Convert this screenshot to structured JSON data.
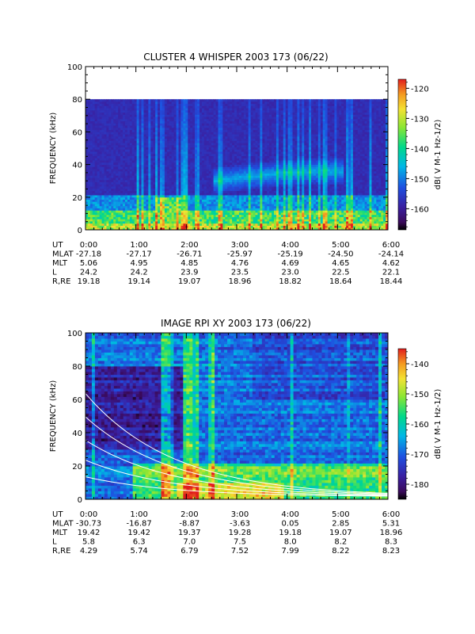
{
  "chart_data": [
    {
      "type": "heatmap",
      "title": "CLUSTER 4 WHISPER 2003 173 (06/22)",
      "ylabel": "FREQUENCY (kHz)",
      "xlim": [
        "0:00",
        "6:00"
      ],
      "ylim": [
        0,
        100
      ],
      "y_ticks": [
        "0",
        "20",
        "40",
        "60",
        "80",
        "100"
      ],
      "data_max_freq_khz": 80,
      "colorbar": {
        "label": "dB( V M-1 Hz-1/2)",
        "range": [
          -167,
          -117
        ],
        "ticks": [
          "-120",
          "-130",
          "-140",
          "-150",
          "-160"
        ],
        "tick_values": [
          -120,
          -130,
          -140,
          -150,
          -160
        ]
      },
      "ephemeris": {
        "labels": [
          "UT",
          "MLAT",
          "MLT",
          "L",
          "R,RE"
        ],
        "columns": [
          [
            "0:00",
            "-27.18",
            "5.06",
            "24.2",
            "19.18"
          ],
          [
            "1:00",
            "-27.17",
            "4.95",
            "24.2",
            "19.14"
          ],
          [
            "2:00",
            "-26.71",
            "4.85",
            "23.9",
            "19.07"
          ],
          [
            "3:00",
            "-25.97",
            "4.76",
            "23.5",
            "18.96"
          ],
          [
            "4:00",
            "-25.19",
            "4.69",
            "23.0",
            "18.82"
          ],
          [
            "5:00",
            "-24.50",
            "4.65",
            "22.5",
            "18.64"
          ],
          [
            "6:00",
            "-24.14",
            "4.62",
            "22.1",
            "18.44"
          ]
        ]
      }
    },
    {
      "type": "heatmap",
      "title": "IMAGE RPI XY 2003 173 (06/22)",
      "ylabel": "FREQUENCY (kHz)",
      "xlim": [
        "0:00",
        "6:00"
      ],
      "ylim": [
        0,
        100
      ],
      "y_ticks": [
        "0",
        "20",
        "40",
        "60",
        "80",
        "100"
      ],
      "colorbar": {
        "label": "dB( V M-1 Hz-1/2)",
        "range": [
          -185,
          -135
        ],
        "ticks": [
          "-140",
          "-150",
          "-160",
          "-170",
          "-180"
        ],
        "tick_values": [
          -140,
          -150,
          -160,
          -170,
          -180
        ]
      },
      "ephemeris": {
        "labels": [
          "UT",
          "MLAT",
          "MLT",
          "L",
          "R,RE"
        ],
        "columns": [
          [
            "0:00",
            "-30.73",
            "19.42",
            "5.8",
            "4.29"
          ],
          [
            "1:00",
            "-16.87",
            "19.42",
            "6.3",
            "5.74"
          ],
          [
            "2:00",
            "-8.87",
            "19.37",
            "7.0",
            "6.79"
          ],
          [
            "3:00",
            "-3.63",
            "19.28",
            "7.5",
            "7.52"
          ],
          [
            "4:00",
            "0.05",
            "19.18",
            "8.0",
            "7.99"
          ],
          [
            "5:00",
            "2.85",
            "19.07",
            "8.2",
            "8.22"
          ],
          [
            "6:00",
            "5.31",
            "18.96",
            "8.3",
            "8.23"
          ]
        ]
      }
    }
  ]
}
